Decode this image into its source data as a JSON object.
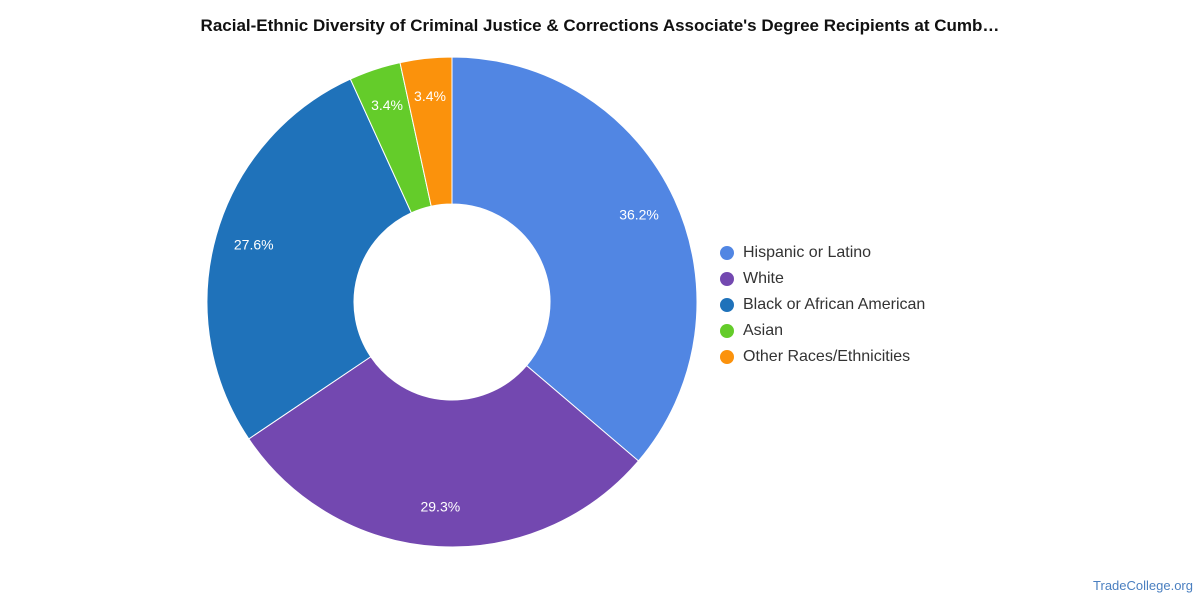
{
  "chart_data": {
    "type": "pie",
    "title": "Racial-Ethnic Diversity of Criminal Justice & Corrections Associate's Degree Recipients at Cumb…",
    "donut": true,
    "legend_position": "right",
    "categories": [
      "Hispanic or Latino",
      "White",
      "Black or African American",
      "Asian",
      "Other Races/Ethnicities"
    ],
    "values": [
      36.2,
      29.3,
      27.6,
      3.4,
      3.4
    ],
    "labels": [
      "36.2%",
      "29.3%",
      "27.6%",
      "3.4%",
      "3.4%"
    ],
    "colors": [
      "#5186e3",
      "#7348b0",
      "#1f72ba",
      "#64cc2a",
      "#fb920c"
    ]
  },
  "watermark": "TradeCollege.org"
}
